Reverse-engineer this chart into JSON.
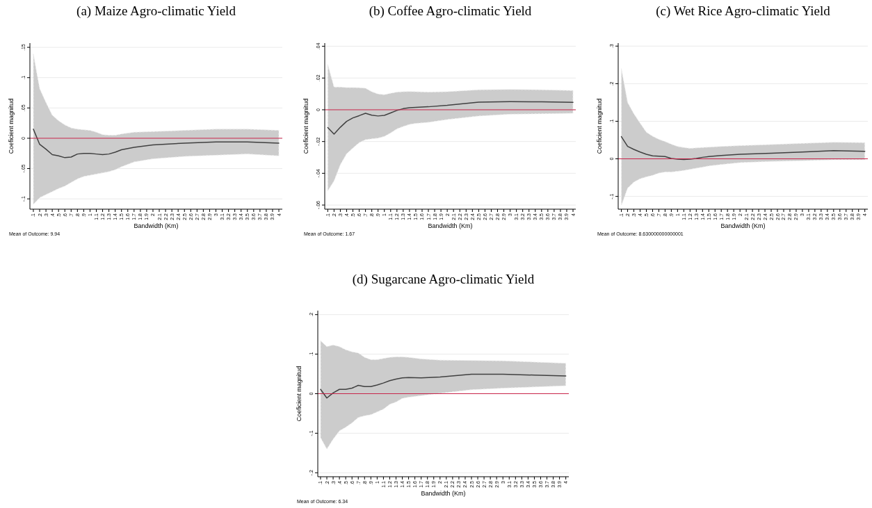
{
  "chart_data": [
    {
      "type": "line",
      "title": "(a) Maize Agro-climatic Yield",
      "xlabel": "Bandwidth (Km)",
      "ylabel": "Coeficient magnitud",
      "annotations": [
        "Mean of Outcome: 9.94"
      ],
      "grid": "y",
      "xlim": [
        0.045,
        4.055
      ],
      "ylim": [
        -0.117,
        0.157
      ],
      "xticks": [
        {
          "value": 0.1,
          "label": ".1"
        },
        {
          "value": 0.2,
          "label": ".2"
        },
        {
          "value": 0.3,
          "label": ".3"
        },
        {
          "value": 0.4,
          "label": ".4"
        },
        {
          "value": 0.5,
          "label": ".5"
        },
        {
          "value": 0.6,
          "label": ".6"
        },
        {
          "value": 0.7,
          "label": ".7"
        },
        {
          "value": 0.8,
          "label": ".8"
        },
        {
          "value": 0.9,
          "label": ".9"
        },
        1,
        1.1,
        1.2,
        1.3,
        1.4,
        1.5,
        1.6,
        1.7,
        1.8,
        1.9,
        2,
        2.1,
        2.2,
        2.3,
        2.4,
        2.5,
        2.6,
        2.7,
        2.8,
        2.9,
        3,
        3.1,
        3.2,
        3.3,
        3.4,
        3.5,
        3.6,
        3.7,
        3.8,
        3.9,
        4
      ],
      "yticks": [
        {
          "value": -0.1,
          "label": "-.1"
        },
        {
          "value": -0.05,
          "label": "-.05"
        },
        {
          "value": 0,
          "label": "0"
        },
        {
          "value": 0.05,
          "label": ".05"
        },
        {
          "value": 0.1,
          "label": ".1"
        },
        {
          "value": 0.15,
          "label": ".15"
        }
      ],
      "ref_lines": [
        {
          "axis": "y",
          "value": 0,
          "color": "#c8244a"
        }
      ],
      "series": [
        {
          "color": "#404040",
          "x": [
            0.1,
            0.2,
            0.3,
            0.4,
            0.5,
            0.6,
            0.7,
            0.8,
            0.9,
            1,
            1.1,
            1.2,
            1.3,
            1.4,
            1.5,
            1.7,
            2,
            2.5,
            3,
            3.5,
            4
          ],
          "values": [
            0.015,
            -0.01,
            -0.018,
            -0.027,
            -0.029,
            -0.032,
            -0.031,
            -0.026,
            -0.025,
            -0.025,
            -0.026,
            -0.027,
            -0.026,
            -0.023,
            -0.019,
            -0.015,
            -0.011,
            -0.008,
            -0.006,
            -0.006,
            -0.008
          ],
          "upper": [
            0.139,
            0.082,
            0.059,
            0.038,
            0.029,
            0.022,
            0.017,
            0.015,
            0.014,
            0.013,
            0.01,
            0.006,
            0.005,
            0.005,
            0.007,
            0.01,
            0.011,
            0.013,
            0.015,
            0.015,
            0.013
          ],
          "lower": [
            -0.109,
            -0.098,
            -0.093,
            -0.088,
            -0.083,
            -0.079,
            -0.073,
            -0.067,
            -0.063,
            -0.061,
            -0.059,
            -0.057,
            -0.055,
            -0.052,
            -0.047,
            -0.039,
            -0.034,
            -0.03,
            -0.028,
            -0.026,
            -0.029
          ]
        }
      ]
    },
    {
      "type": "line",
      "title": "(b) Coffee Agro-climatic Yield",
      "xlabel": "Bandwidth (Km)",
      "ylabel": "Coeficient magnitud",
      "annotations": [
        "Mean of Outcome: 1.67"
      ],
      "grid": "y",
      "xlim": [
        0.052,
        4.044
      ],
      "ylim": [
        -0.0626,
        0.042
      ],
      "xticks": [
        {
          "value": 0.1,
          "label": ".1"
        },
        {
          "value": 0.2,
          "label": ".2"
        },
        {
          "value": 0.3,
          "label": ".3"
        },
        {
          "value": 0.4,
          "label": ".4"
        },
        {
          "value": 0.5,
          "label": ".5"
        },
        {
          "value": 0.6,
          "label": ".6"
        },
        {
          "value": 0.7,
          "label": ".7"
        },
        {
          "value": 0.8,
          "label": ".8"
        },
        {
          "value": 0.9,
          "label": ".9"
        },
        1,
        1.1,
        1.2,
        1.3,
        1.4,
        1.5,
        1.6,
        1.7,
        1.8,
        1.9,
        2,
        2.1,
        2.2,
        2.3,
        2.4,
        2.5,
        2.6,
        2.7,
        2.8,
        2.9,
        3,
        3.1,
        3.2,
        3.3,
        3.4,
        3.5,
        3.6,
        3.7,
        3.8,
        3.9,
        4
      ],
      "yticks": [
        {
          "value": -0.06,
          "label": "-.06"
        },
        {
          "value": -0.04,
          "label": "-.04"
        },
        {
          "value": -0.02,
          "label": "-.02"
        },
        {
          "value": 0,
          "label": "0"
        },
        {
          "value": 0.02,
          "label": ".02"
        },
        {
          "value": 0.04,
          "label": ".04"
        }
      ],
      "ref_lines": [
        {
          "axis": "y",
          "value": 0,
          "color": "#c8244a"
        }
      ],
      "series": [
        {
          "color": "#404040",
          "x": [
            0.1,
            0.2,
            0.3,
            0.4,
            0.5,
            0.6,
            0.7,
            0.8,
            0.9,
            1,
            1.1,
            1.2,
            1.3,
            1.4,
            1.5,
            1.7,
            2,
            2.5,
            3,
            3.5,
            4
          ],
          "values": [
            -0.0112,
            -0.0153,
            -0.011,
            -0.0073,
            -0.0051,
            -0.0037,
            -0.0022,
            -0.0034,
            -0.0039,
            -0.0035,
            -0.002,
            -0.0004,
            0.0007,
            0.0013,
            0.0015,
            0.0019,
            0.0028,
            0.0048,
            0.0051,
            0.005,
            0.0047
          ],
          "upper": [
            0.0285,
            0.0143,
            0.0143,
            0.014,
            0.014,
            0.0139,
            0.0136,
            0.0114,
            0.0099,
            0.0095,
            0.0104,
            0.0111,
            0.0114,
            0.0115,
            0.0114,
            0.0111,
            0.0114,
            0.0126,
            0.0128,
            0.0126,
            0.0121
          ],
          "lower": [
            -0.0511,
            -0.0448,
            -0.0346,
            -0.0277,
            -0.0241,
            -0.0207,
            -0.0188,
            -0.0183,
            -0.0178,
            -0.0168,
            -0.0146,
            -0.012,
            -0.0105,
            -0.0092,
            -0.0086,
            -0.0079,
            -0.0061,
            -0.0039,
            -0.0028,
            -0.0025,
            -0.0022
          ]
        }
      ]
    },
    {
      "type": "line",
      "title": "(c) Wet Rice Agro-climatic Yield",
      "xlabel": "Bandwidth (Km)",
      "ylabel": "Coeficient magnitud",
      "annotations": [
        "Mean of Outcome: 8.630000000000001"
      ],
      "grid": "y",
      "xlim": [
        0.049,
        4.048
      ],
      "ylim": [
        -0.134,
        0.308
      ],
      "xticks": [
        {
          "value": 0.1,
          "label": ".1"
        },
        {
          "value": 0.2,
          "label": ".2"
        },
        {
          "value": 0.3,
          "label": ".3"
        },
        {
          "value": 0.4,
          "label": ".4"
        },
        {
          "value": 0.5,
          "label": ".5"
        },
        {
          "value": 0.6,
          "label": ".6"
        },
        {
          "value": 0.7,
          "label": ".7"
        },
        {
          "value": 0.8,
          "label": ".8"
        },
        {
          "value": 0.9,
          "label": ".9"
        },
        1,
        1.1,
        1.2,
        1.3,
        1.4,
        1.5,
        1.6,
        1.7,
        1.8,
        1.9,
        2,
        2.1,
        2.2,
        2.3,
        2.4,
        2.5,
        2.6,
        2.7,
        2.8,
        2.9,
        3,
        3.1,
        3.2,
        3.3,
        3.4,
        3.5,
        3.6,
        3.7,
        3.8,
        3.9,
        4
      ],
      "yticks": [
        {
          "value": -0.1,
          "label": "-.1"
        },
        {
          "value": 0,
          "label": "0"
        },
        {
          "value": 0.1,
          "label": ".1"
        },
        {
          "value": 0.2,
          "label": ".2"
        },
        {
          "value": 0.3,
          "label": ".3"
        }
      ],
      "ref_lines": [
        {
          "axis": "y",
          "value": 0,
          "color": "#c8244a"
        }
      ],
      "series": [
        {
          "color": "#404040",
          "x": [
            0.1,
            0.2,
            0.3,
            0.4,
            0.5,
            0.6,
            0.7,
            0.8,
            0.9,
            1,
            1.1,
            1.2,
            1.3,
            1.4,
            1.5,
            1.7,
            2,
            2.5,
            3,
            3.5,
            4
          ],
          "values": [
            0.059,
            0.033,
            0.025,
            0.018,
            0.012,
            0.008,
            0.007,
            0.006,
            0.001,
            -0.001,
            -0.002,
            -0.001,
            0.001,
            0.004,
            0.006,
            0.009,
            0.012,
            0.015,
            0.018,
            0.022,
            0.02
          ],
          "upper": [
            0.24,
            0.15,
            0.12,
            0.095,
            0.071,
            0.06,
            0.052,
            0.046,
            0.039,
            0.033,
            0.03,
            0.028,
            0.029,
            0.03,
            0.031,
            0.033,
            0.035,
            0.038,
            0.041,
            0.044,
            0.043
          ],
          "lower": [
            -0.124,
            -0.078,
            -0.062,
            -0.053,
            -0.048,
            -0.044,
            -0.038,
            -0.035,
            -0.035,
            -0.033,
            -0.031,
            -0.028,
            -0.025,
            -0.022,
            -0.019,
            -0.015,
            -0.01,
            -0.007,
            -0.005,
            -0.0025,
            -0.0025
          ]
        }
      ]
    },
    {
      "type": "line",
      "title": "(d) Sugarcane Agro-climatic Yield",
      "xlabel": "Bandwidth (Km)",
      "ylabel": "Coeficient magnitud",
      "annotations": [
        "Mean of Outcome: 6.34"
      ],
      "grid": "y",
      "xlim": [
        0.056,
        4.048
      ],
      "ylim": [
        -0.21,
        0.21
      ],
      "xticks": [
        {
          "value": 0.1,
          "label": ".1"
        },
        {
          "value": 0.2,
          "label": ".2"
        },
        {
          "value": 0.3,
          "label": ".3"
        },
        {
          "value": 0.4,
          "label": ".4"
        },
        {
          "value": 0.5,
          "label": ".5"
        },
        {
          "value": 0.6,
          "label": ".6"
        },
        {
          "value": 0.7,
          "label": ".7"
        },
        {
          "value": 0.8,
          "label": ".8"
        },
        {
          "value": 0.9,
          "label": ".9"
        },
        1,
        1.1,
        1.2,
        1.3,
        1.4,
        1.5,
        1.6,
        1.7,
        1.8,
        1.9,
        2,
        2.1,
        2.2,
        2.3,
        2.4,
        2.5,
        2.6,
        2.7,
        2.8,
        2.9,
        3,
        3.1,
        3.2,
        3.3,
        3.4,
        3.5,
        3.6,
        3.7,
        3.8,
        3.9,
        4
      ],
      "yticks": [
        {
          "value": -0.2,
          "label": "-.2"
        },
        {
          "value": -0.1,
          "label": "-.1"
        },
        {
          "value": 0,
          "label": "0"
        },
        {
          "value": 0.1,
          "label": ".1"
        },
        {
          "value": 0.2,
          "label": ".2"
        }
      ],
      "ref_lines": [
        {
          "axis": "y",
          "value": 0,
          "color": "#c8244a"
        }
      ],
      "series": [
        {
          "color": "#404040",
          "x": [
            0.1,
            0.2,
            0.3,
            0.4,
            0.5,
            0.6,
            0.7,
            0.8,
            0.9,
            1,
            1.1,
            1.2,
            1.3,
            1.4,
            1.5,
            1.7,
            2,
            2.5,
            3,
            3.5,
            4
          ],
          "values": [
            0.011,
            -0.011,
            0.002,
            0.011,
            0.011,
            0.014,
            0.021,
            0.018,
            0.018,
            0.022,
            0.027,
            0.033,
            0.037,
            0.04,
            0.041,
            0.04,
            0.042,
            0.049,
            0.049,
            0.047,
            0.045
          ],
          "upper": [
            0.134,
            0.119,
            0.123,
            0.119,
            0.111,
            0.106,
            0.103,
            0.092,
            0.086,
            0.086,
            0.089,
            0.092,
            0.093,
            0.093,
            0.092,
            0.088,
            0.085,
            0.084,
            0.083,
            0.08,
            0.077
          ],
          "lower": [
            -0.111,
            -0.14,
            -0.115,
            -0.094,
            -0.085,
            -0.074,
            -0.06,
            -0.056,
            -0.053,
            -0.046,
            -0.039,
            -0.027,
            -0.021,
            -0.012,
            -0.009,
            -0.005,
            0.001,
            0.01,
            0.014,
            0.017,
            0.02
          ]
        }
      ]
    }
  ]
}
